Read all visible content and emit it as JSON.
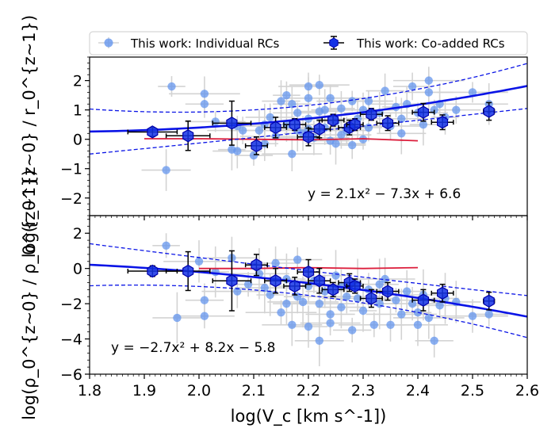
{
  "chart_data": {
    "type": "scatter",
    "title": "",
    "xlabel": "log(V_c [km s^-1])",
    "xlim": [
      1.8,
      2.6
    ],
    "xticks": [
      "1.8",
      "1.9",
      "2.0",
      "2.1",
      "2.2",
      "2.3",
      "2.4",
      "2.5",
      "2.6"
    ],
    "legend": {
      "placement": "top",
      "entries": [
        "This work: Individual RCs",
        "This work: Co-added RCs"
      ]
    },
    "colors": {
      "individual": "#6495ed",
      "coadded": "#1432e6",
      "fit": "#0a14e6",
      "reference": "#dc1e3c",
      "errorbar": "#d3d3d3"
    },
    "panels": [
      {
        "name": "top",
        "ylabel": "log(r_0^{z~0} / r_0^{z~1})",
        "ylim": [
          -2.6,
          2.8
        ],
        "yticks": [
          "−2",
          "−1",
          "0",
          "1",
          "2"
        ],
        "equation": "y = 2.1x² − 7.3x + 6.6",
        "fit": {
          "a": 2.1,
          "b": -7.3,
          "c": 6.6
        },
        "reference_line": {
          "x": [
            1.9,
            2.0,
            2.1,
            2.2,
            2.3,
            2.4
          ],
          "y": [
            0.02,
            0.02,
            0.0,
            -0.02,
            0.02,
            -0.05
          ]
        },
        "individual": [
          {
            "x": 1.95,
            "y": 1.8
          },
          {
            "x": 1.94,
            "y": -1.05
          },
          {
            "x": 2.01,
            "y": 1.55
          },
          {
            "x": 2.01,
            "y": 1.2
          },
          {
            "x": 2.03,
            "y": 0.6
          },
          {
            "x": 2.06,
            "y": -0.35
          },
          {
            "x": 2.07,
            "y": -0.4
          },
          {
            "x": 2.08,
            "y": 0.3
          },
          {
            "x": 2.1,
            "y": -0.55
          },
          {
            "x": 2.11,
            "y": 0.3
          },
          {
            "x": 2.12,
            "y": -0.15
          },
          {
            "x": 2.13,
            "y": 0.75
          },
          {
            "x": 2.14,
            "y": 0.1
          },
          {
            "x": 2.15,
            "y": 1.3
          },
          {
            "x": 2.16,
            "y": 0.5
          },
          {
            "x": 2.16,
            "y": 1.5
          },
          {
            "x": 2.18,
            "y": 0.9
          },
          {
            "x": 2.18,
            "y": 0.3
          },
          {
            "x": 2.19,
            "y": 0.2
          },
          {
            "x": 2.2,
            "y": 1.8
          },
          {
            "x": 2.2,
            "y": 0.7
          },
          {
            "x": 2.2,
            "y": 1.4
          },
          {
            "x": 2.21,
            "y": 0.05
          },
          {
            "x": 2.22,
            "y": 0.95
          },
          {
            "x": 2.22,
            "y": 1.85
          },
          {
            "x": 2.23,
            "y": 1.0
          },
          {
            "x": 2.23,
            "y": 0.4
          },
          {
            "x": 2.24,
            "y": 1.4
          },
          {
            "x": 2.25,
            "y": 0.6
          },
          {
            "x": 2.25,
            "y": -0.15
          },
          {
            "x": 2.26,
            "y": 1.05
          },
          {
            "x": 2.27,
            "y": 0.3
          },
          {
            "x": 2.28,
            "y": 1.3
          },
          {
            "x": 2.29,
            "y": 0.7
          },
          {
            "x": 2.3,
            "y": 1.0
          },
          {
            "x": 2.31,
            "y": 0.4
          },
          {
            "x": 2.31,
            "y": 1.3
          },
          {
            "x": 2.33,
            "y": 0.9
          },
          {
            "x": 2.34,
            "y": 1.65
          },
          {
            "x": 2.35,
            "y": 0.45
          },
          {
            "x": 2.36,
            "y": 1.1
          },
          {
            "x": 2.37,
            "y": 0.7
          },
          {
            "x": 2.38,
            "y": 1.2
          },
          {
            "x": 2.39,
            "y": 1.8
          },
          {
            "x": 2.4,
            "y": 0.9
          },
          {
            "x": 2.41,
            "y": 0.5
          },
          {
            "x": 2.42,
            "y": 1.6
          },
          {
            "x": 2.42,
            "y": 2.0
          },
          {
            "x": 2.43,
            "y": 1.0
          },
          {
            "x": 2.44,
            "y": 1.2
          },
          {
            "x": 2.45,
            "y": 0.75
          },
          {
            "x": 2.47,
            "y": 1.0
          },
          {
            "x": 2.5,
            "y": 1.6
          },
          {
            "x": 2.53,
            "y": 1.2
          },
          {
            "x": 2.17,
            "y": -0.5
          },
          {
            "x": 2.28,
            "y": -0.2
          },
          {
            "x": 2.07,
            "y": 0.45
          },
          {
            "x": 2.12,
            "y": 0.5
          },
          {
            "x": 2.17,
            "y": 1.2
          },
          {
            "x": 2.26,
            "y": 0.15
          },
          {
            "x": 2.3,
            "y": 0.0
          },
          {
            "x": 2.37,
            "y": 0.2
          },
          {
            "x": 2.2,
            "y": 0.35
          },
          {
            "x": 2.24,
            "y": -0.05
          }
        ],
        "coadded": [
          {
            "x": 1.915,
            "y": 0.25,
            "xerr": 0.045,
            "yerr": 0.15
          },
          {
            "x": 1.98,
            "y": 0.12,
            "xerr": 0.04,
            "yerr": 0.5
          },
          {
            "x": 2.06,
            "y": 0.55,
            "xerr": 0.035,
            "yerr": 0.75
          },
          {
            "x": 2.105,
            "y": -0.22,
            "xerr": 0.02,
            "yerr": 0.3
          },
          {
            "x": 2.14,
            "y": 0.4,
            "xerr": 0.02,
            "yerr": 0.35
          },
          {
            "x": 2.175,
            "y": 0.5,
            "xerr": 0.02,
            "yerr": 0.2
          },
          {
            "x": 2.2,
            "y": 0.08,
            "xerr": 0.02,
            "yerr": 0.3
          },
          {
            "x": 2.22,
            "y": 0.35,
            "xerr": 0.02,
            "yerr": 0.3
          },
          {
            "x": 2.245,
            "y": 0.65,
            "xerr": 0.02,
            "yerr": 0.2
          },
          {
            "x": 2.275,
            "y": 0.4,
            "xerr": 0.02,
            "yerr": 0.25
          },
          {
            "x": 2.285,
            "y": 0.5,
            "xerr": 0.015,
            "yerr": 0.2
          },
          {
            "x": 2.315,
            "y": 0.85,
            "xerr": 0.02,
            "yerr": 0.2
          },
          {
            "x": 2.345,
            "y": 0.55,
            "xerr": 0.02,
            "yerr": 0.25
          },
          {
            "x": 2.41,
            "y": 0.92,
            "xerr": 0.02,
            "yerr": 0.3
          },
          {
            "x": 2.445,
            "y": 0.58,
            "xerr": 0.02,
            "yerr": 0.25
          },
          {
            "x": 2.53,
            "y": 0.95,
            "xerr": 0.01,
            "yerr": 0.3
          }
        ]
      },
      {
        "name": "bottom",
        "ylabel": "log(ρ_0^{z~0} / ρ_0^{z~1})",
        "ylim": [
          -6,
          3.0
        ],
        "yticks": [
          "−6",
          "−4",
          "−2",
          "0",
          "2"
        ],
        "equation": "y = −2.7x² + 8.2x − 5.8",
        "fit": {
          "a": -2.7,
          "b": 8.2,
          "c": -5.8
        },
        "reference_line": {
          "x": [
            2.0,
            2.1,
            2.2,
            2.3,
            2.4
          ],
          "y": [
            0.0,
            0.0,
            0.05,
            0.0,
            0.05
          ]
        },
        "individual": [
          {
            "x": 1.94,
            "y": 1.3
          },
          {
            "x": 1.96,
            "y": -2.8
          },
          {
            "x": 2.0,
            "y": 0.4
          },
          {
            "x": 2.01,
            "y": -1.8
          },
          {
            "x": 2.01,
            "y": -2.7
          },
          {
            "x": 2.03,
            "y": -0.2
          },
          {
            "x": 2.06,
            "y": 0.6
          },
          {
            "x": 2.07,
            "y": -1.3
          },
          {
            "x": 2.09,
            "y": -0.9
          },
          {
            "x": 2.11,
            "y": -0.3
          },
          {
            "x": 2.13,
            "y": -1.5
          },
          {
            "x": 2.14,
            "y": 0.3
          },
          {
            "x": 2.15,
            "y": -2.5
          },
          {
            "x": 2.16,
            "y": -0.6
          },
          {
            "x": 2.17,
            "y": -3.2
          },
          {
            "x": 2.18,
            "y": -1.6
          },
          {
            "x": 2.18,
            "y": 0.5
          },
          {
            "x": 2.19,
            "y": -1.9
          },
          {
            "x": 2.2,
            "y": -3.3
          },
          {
            "x": 2.2,
            "y": -1.0
          },
          {
            "x": 2.21,
            "y": -0.7
          },
          {
            "x": 2.22,
            "y": -4.1
          },
          {
            "x": 2.22,
            "y": -2.0
          },
          {
            "x": 2.23,
            "y": -1.3
          },
          {
            "x": 2.24,
            "y": -3.1
          },
          {
            "x": 2.25,
            "y": -0.4
          },
          {
            "x": 2.26,
            "y": -2.2
          },
          {
            "x": 2.27,
            "y": -1.6
          },
          {
            "x": 2.28,
            "y": -3.5
          },
          {
            "x": 2.29,
            "y": -0.9
          },
          {
            "x": 2.3,
            "y": -2.4
          },
          {
            "x": 2.31,
            "y": -1.2
          },
          {
            "x": 2.32,
            "y": -3.2
          },
          {
            "x": 2.33,
            "y": -2.0
          },
          {
            "x": 2.34,
            "y": -0.6
          },
          {
            "x": 2.35,
            "y": -3.2
          },
          {
            "x": 2.36,
            "y": -1.8
          },
          {
            "x": 2.37,
            "y": -2.6
          },
          {
            "x": 2.38,
            "y": -1.3
          },
          {
            "x": 2.39,
            "y": -2.0
          },
          {
            "x": 2.4,
            "y": -2.5
          },
          {
            "x": 2.41,
            "y": -1.5
          },
          {
            "x": 2.42,
            "y": -2.8
          },
          {
            "x": 2.43,
            "y": -4.1
          },
          {
            "x": 2.44,
            "y": -2.1
          },
          {
            "x": 2.45,
            "y": -1.7
          },
          {
            "x": 2.47,
            "y": -1.9
          },
          {
            "x": 2.5,
            "y": -2.7
          },
          {
            "x": 2.53,
            "y": -2.6
          },
          {
            "x": 2.12,
            "y": -1.1
          },
          {
            "x": 2.16,
            "y": -2.0
          },
          {
            "x": 2.24,
            "y": -2.6
          },
          {
            "x": 2.29,
            "y": -1.7
          },
          {
            "x": 2.33,
            "y": -0.9
          },
          {
            "x": 2.4,
            "y": -3.2
          },
          {
            "x": 2.26,
            "y": -1.0
          }
        ],
        "coadded": [
          {
            "x": 1.915,
            "y": -0.15,
            "xerr": 0.045,
            "yerr": 0.3
          },
          {
            "x": 1.98,
            "y": -0.15,
            "xerr": 0.04,
            "yerr": 1.1
          },
          {
            "x": 2.06,
            "y": -0.7,
            "xerr": 0.035,
            "yerr": 1.7
          },
          {
            "x": 2.105,
            "y": 0.2,
            "xerr": 0.02,
            "yerr": 0.6
          },
          {
            "x": 2.14,
            "y": -0.7,
            "xerr": 0.02,
            "yerr": 0.7
          },
          {
            "x": 2.175,
            "y": -1.0,
            "xerr": 0.02,
            "yerr": 0.5
          },
          {
            "x": 2.2,
            "y": -0.2,
            "xerr": 0.02,
            "yerr": 0.7
          },
          {
            "x": 2.22,
            "y": -0.7,
            "xerr": 0.02,
            "yerr": 0.7
          },
          {
            "x": 2.245,
            "y": -1.2,
            "xerr": 0.02,
            "yerr": 0.4
          },
          {
            "x": 2.275,
            "y": -0.8,
            "xerr": 0.02,
            "yerr": 0.5
          },
          {
            "x": 2.285,
            "y": -1.0,
            "xerr": 0.015,
            "yerr": 0.4
          },
          {
            "x": 2.315,
            "y": -1.7,
            "xerr": 0.02,
            "yerr": 0.5
          },
          {
            "x": 2.345,
            "y": -1.3,
            "xerr": 0.02,
            "yerr": 0.5
          },
          {
            "x": 2.41,
            "y": -1.8,
            "xerr": 0.02,
            "yerr": 0.6
          },
          {
            "x": 2.445,
            "y": -1.4,
            "xerr": 0.02,
            "yerr": 0.5
          },
          {
            "x": 2.53,
            "y": -1.85,
            "xerr": 0.01,
            "yerr": 0.5
          }
        ]
      }
    ]
  }
}
